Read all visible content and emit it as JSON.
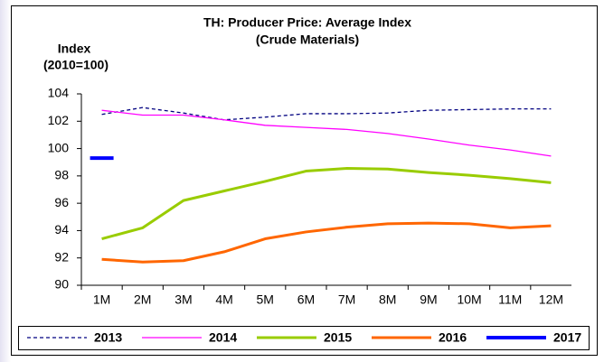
{
  "chart_data": {
    "type": "line",
    "title": [
      "TH: Producer Price:  Average Index",
      "(Crude Materials)"
    ],
    "ylabel": [
      "Index",
      "(2010=100)"
    ],
    "categories": [
      "1M",
      "2M",
      "3M",
      "4M",
      "5M",
      "6M",
      "7M",
      "8M",
      "9M",
      "10M",
      "11M",
      "12M"
    ],
    "series": [
      {
        "name": "2013",
        "color": "#000080",
        "dashed": true,
        "width": 1.3,
        "values": [
          102.5,
          103.0,
          102.6,
          102.1,
          102.3,
          102.55,
          102.55,
          102.6,
          102.8,
          102.85,
          102.9,
          102.9
        ]
      },
      {
        "name": "2014",
        "color": "#ff00ff",
        "dashed": false,
        "width": 1.3,
        "values": [
          102.8,
          102.45,
          102.45,
          102.1,
          101.7,
          101.55,
          101.4,
          101.1,
          100.7,
          100.25,
          99.9,
          99.45
        ]
      },
      {
        "name": "2015",
        "color": "#99cc00",
        "dashed": false,
        "width": 3,
        "values": [
          93.4,
          94.2,
          96.2,
          96.9,
          97.6,
          98.35,
          98.55,
          98.5,
          98.25,
          98.05,
          97.8,
          97.5
        ]
      },
      {
        "name": "2016",
        "color": "#ff6600",
        "dashed": false,
        "width": 3,
        "values": [
          91.9,
          91.7,
          91.8,
          92.45,
          93.4,
          93.9,
          94.25,
          94.5,
          94.55,
          94.5,
          94.2,
          94.35
        ]
      },
      {
        "name": "2017",
        "color": "#0000ff",
        "dashed": false,
        "width": 4,
        "values": [
          99.3,
          null,
          null,
          null,
          null,
          null,
          null,
          null,
          null,
          null,
          null,
          null
        ]
      }
    ],
    "ylim": [
      90,
      104
    ],
    "yticks": [
      90,
      92,
      94,
      96,
      98,
      100,
      102,
      104
    ],
    "grid": false,
    "legend": "bottom"
  }
}
